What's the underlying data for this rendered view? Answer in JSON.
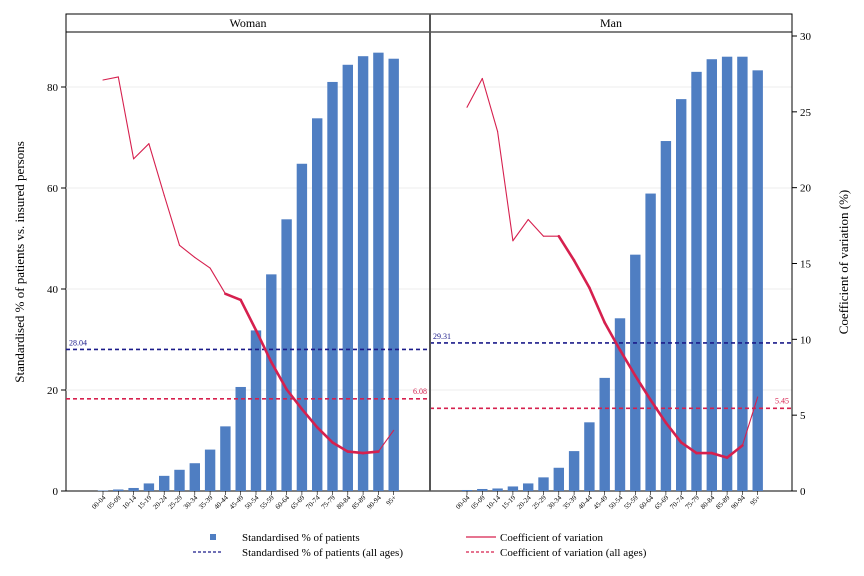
{
  "chart_data": {
    "type": "bar",
    "ylabel_left": "Standardised % of patients vs. insured persons",
    "ylabel_right": "Coefficient of variation (%)",
    "ylim_left": [
      0,
      90
    ],
    "ylim_right": [
      0,
      30
    ],
    "yticks_left": [
      "0",
      "20",
      "40",
      "60",
      "80"
    ],
    "yticks_right": [
      "0",
      "5",
      "10",
      "15",
      "20",
      "25",
      "30"
    ],
    "categories": [
      "00-04",
      "05-09",
      "10-14",
      "15-19",
      "20-24",
      "25-29",
      "30-34",
      "35-39",
      "40-44",
      "45-49",
      "50-54",
      "55-59",
      "60-64",
      "65-69",
      "70-74",
      "75-79",
      "80-84",
      "85-89",
      "90-94",
      "95+"
    ],
    "colors": {
      "bars": "#4f7ec2",
      "cv": "#d6204e",
      "ref_patients": "#1b1b8a",
      "ref_cv": "#d6204e"
    },
    "panels": [
      {
        "title": "Woman",
        "bars": [
          0.1,
          0.3,
          0.6,
          1.5,
          3.0,
          4.2,
          5.5,
          8.2,
          12.8,
          20.6,
          31.8,
          42.9,
          53.8,
          64.8,
          73.8,
          81.0,
          84.4,
          86.1,
          86.8,
          85.6
        ],
        "cv": [
          27.1,
          27.3,
          21.9,
          22.9,
          19.5,
          16.2,
          15.4,
          14.7,
          13.0,
          12.6,
          10.6,
          8.5,
          6.7,
          5.4,
          4.2,
          3.2,
          2.6,
          2.5,
          2.6,
          4.0
        ],
        "ref_patients": 28.04,
        "ref_patients_label": "28.04",
        "ref_cv": 6.08,
        "ref_cv_label": "6.08"
      },
      {
        "title": "Man",
        "bars": [
          0.2,
          0.4,
          0.5,
          0.9,
          1.5,
          2.7,
          4.6,
          7.9,
          13.6,
          22.4,
          34.2,
          46.8,
          58.9,
          69.3,
          77.6,
          83.0,
          85.5,
          86.0,
          86.0,
          83.3
        ],
        "cv": [
          25.3,
          27.2,
          23.7,
          16.5,
          17.9,
          16.8,
          16.8,
          15.2,
          13.4,
          11.1,
          9.3,
          7.6,
          6.0,
          4.5,
          3.2,
          2.5,
          2.5,
          2.2,
          3.0,
          6.2
        ],
        "ref_patients": 29.31,
        "ref_patients_label": "29.31",
        "ref_cv": 5.45,
        "ref_cv_label": "5.45"
      }
    ],
    "legend": [
      {
        "label": "Standardised % of patients",
        "kind": "bar"
      },
      {
        "label": "Coefficient of variation",
        "kind": "line"
      },
      {
        "label": "Standardised % of patients (all ages)",
        "kind": "dash-blue"
      },
      {
        "label": "Coefficient of variation (all ages)",
        "kind": "dash-red"
      }
    ]
  }
}
